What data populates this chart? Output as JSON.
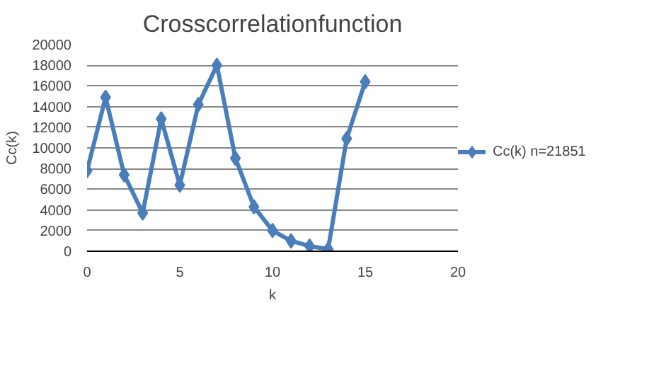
{
  "chart_data": {
    "type": "line",
    "title": "Crosscorrelationfunction",
    "xlabel": "k",
    "ylabel": "Cc(k)",
    "x": [
      0,
      1,
      2,
      3,
      4,
      5,
      6,
      7,
      8,
      9,
      10,
      11,
      12,
      13,
      14,
      15
    ],
    "series": [
      {
        "name": "Cc(k) n=21851",
        "color": "#4a7ebb",
        "values": [
          7800,
          14900,
          7400,
          3700,
          12800,
          6400,
          14200,
          18000,
          9000,
          4300,
          2000,
          1000,
          500,
          200,
          10900,
          16400
        ]
      }
    ],
    "xlim": [
      0,
      20
    ],
    "xticks": [
      0,
      5,
      10,
      15,
      20
    ],
    "ylim": [
      0,
      20000
    ],
    "yticks": [
      0,
      2000,
      4000,
      6000,
      8000,
      10000,
      12000,
      14000,
      16000,
      18000,
      20000
    ],
    "grid": "y",
    "legend": "right",
    "marker": "diamond",
    "line_style": "solid"
  }
}
